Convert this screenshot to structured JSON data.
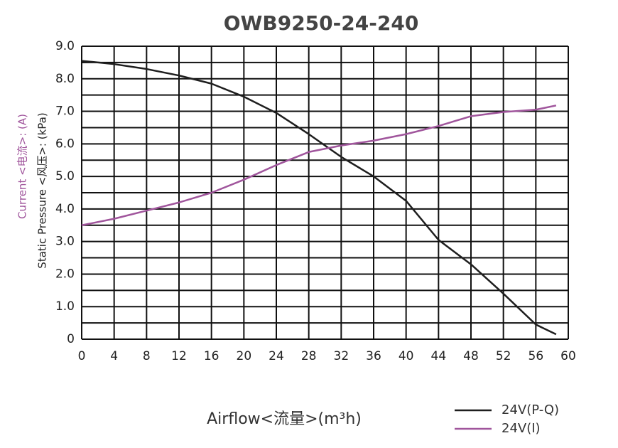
{
  "chart_data": {
    "type": "line",
    "title": "OWB9250-24-240",
    "x_label": "Airflow<流量>(m³h)",
    "y_label": "Static  Pressure <风压>: (kPa)",
    "y_label_2": "Current <电流>: (A)",
    "y_label_2_color": "#a0559c",
    "xlim": [
      0,
      60
    ],
    "xticks": [
      0,
      4,
      8,
      12,
      16,
      20,
      24,
      28,
      32,
      36,
      40,
      44,
      48,
      52,
      56,
      60
    ],
    "ylim": [
      0,
      9
    ],
    "yticks": [
      0,
      {
        "value": 1,
        "label": "1.0"
      },
      {
        "value": 2,
        "label": "2.0"
      },
      {
        "value": 3,
        "label": "3.0"
      },
      {
        "value": 4,
        "label": "4.0"
      },
      {
        "value": 5,
        "label": "5.0"
      },
      {
        "value": 6,
        "label": "6.0"
      },
      {
        "value": 7,
        "label": "7.0"
      },
      {
        "value": 8,
        "label": "8.0"
      },
      {
        "value": 9,
        "label": "9.0"
      }
    ],
    "minor_yticks": [
      0.5,
      1.5,
      2.5,
      3.5,
      4.5,
      5.5,
      6.5,
      7.5,
      8.5
    ],
    "grid": true,
    "legend": "bottom-right",
    "x": [
      0,
      4,
      8,
      12,
      16,
      20,
      24,
      28,
      32,
      36,
      40,
      44,
      48,
      52,
      56,
      58.5
    ],
    "series": [
      {
        "name": "24V(P-Q)",
        "color": "#1e1e1e",
        "values": [
          8.55,
          8.45,
          8.3,
          8.1,
          7.85,
          7.45,
          6.95,
          6.3,
          5.6,
          5.0,
          4.25,
          3.05,
          2.3,
          1.4,
          0.45,
          0.15
        ]
      },
      {
        "name": "24V(I)",
        "color": "#a0559c",
        "values": [
          3.5,
          3.7,
          3.95,
          4.2,
          4.5,
          4.9,
          5.35,
          5.75,
          5.95,
          6.1,
          6.3,
          6.55,
          6.85,
          6.98,
          7.05,
          7.18
        ]
      }
    ]
  }
}
